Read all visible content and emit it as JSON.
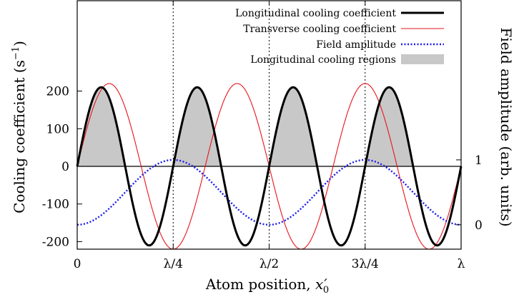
{
  "chart_data": {
    "type": "line",
    "xlabel": "Atom position, x'₀",
    "ylabel_left": "Cooling coefficient (s⁻¹)",
    "ylabel_right": "Field amplitude (arb. units)",
    "xlim": [
      0,
      1
    ],
    "ylim_left": [
      -220,
      440
    ],
    "ylim_right": [
      -0.3765,
      3.453
    ],
    "x_ticks": [
      {
        "value": 0,
        "label": "0"
      },
      {
        "value": 0.25,
        "label": "λ/4"
      },
      {
        "value": 0.5,
        "label": "λ/2"
      },
      {
        "value": 0.75,
        "label": "3λ/4"
      },
      {
        "value": 1,
        "label": "λ"
      }
    ],
    "y_ticks_left": [
      {
        "value": 200,
        "label": "200"
      },
      {
        "value": 100,
        "label": "100"
      },
      {
        "value": 0,
        "label": "0"
      },
      {
        "value": -100,
        "label": "-100"
      },
      {
        "value": -200,
        "label": "-200"
      }
    ],
    "y_ticks_right": [
      {
        "value": 1,
        "label": "1"
      },
      {
        "value": 0,
        "label": "0"
      }
    ],
    "vlines_x": [
      0.25,
      0.5,
      0.75
    ],
    "series": [
      {
        "name": "Longitudinal cooling coefficient",
        "amplitude": 210,
        "formula": "A*sin(8*pi*x)",
        "color": "#000000",
        "style": "solid-thick"
      },
      {
        "name": "Transverse cooling coefficient",
        "amplitude": 220,
        "formula": "A*sin(6*pi*x)",
        "color": "#e8141c",
        "style": "solid-thin"
      },
      {
        "name": "Field amplitude",
        "amplitude": 1,
        "formula": "sin^2(2*pi*x)",
        "color": "#1a1aee",
        "style": "dotted",
        "axis": "right"
      },
      {
        "name": "Longitudinal cooling regions",
        "formula": "fill where longitudinal > 0",
        "color": "#c8c8c8",
        "style": "fill"
      }
    ],
    "legend_position": "top-right"
  }
}
